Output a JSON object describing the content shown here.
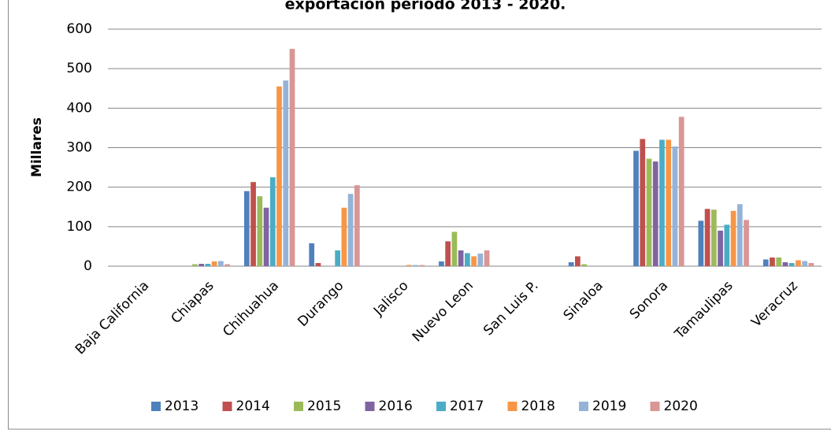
{
  "chart_data": {
    "type": "bar",
    "title": "exportación periodo 2013 - 2020.",
    "y_label": "Millares",
    "categories": [
      "Baja California",
      "Chiapas",
      "Chihuahua",
      "Durango",
      "Jalisco",
      "Nuevo Leon",
      "San Luis P.",
      "Sinaloa",
      "Sonora",
      "Tamaulipas",
      "Veracruz"
    ],
    "series": [
      {
        "name": "2013",
        "color": "#4f81bd",
        "values": [
          0,
          0,
          190,
          58,
          0,
          12,
          0,
          10,
          292,
          115,
          17
        ]
      },
      {
        "name": "2014",
        "color": "#c0504d",
        "values": [
          0,
          0,
          213,
          8,
          0,
          63,
          0,
          25,
          322,
          145,
          22
        ]
      },
      {
        "name": "2015",
        "color": "#9bbb59",
        "values": [
          0,
          5,
          177,
          0,
          0,
          87,
          0,
          5,
          272,
          143,
          22
        ]
      },
      {
        "name": "2016",
        "color": "#8064a2",
        "values": [
          0,
          6,
          148,
          0,
          0,
          40,
          0,
          0,
          265,
          90,
          10
        ]
      },
      {
        "name": "2017",
        "color": "#4bacc6",
        "values": [
          0,
          6,
          225,
          40,
          0,
          33,
          0,
          0,
          320,
          105,
          8
        ]
      },
      {
        "name": "2018",
        "color": "#f79646",
        "values": [
          0,
          12,
          455,
          148,
          3,
          25,
          0,
          0,
          320,
          140,
          15
        ]
      },
      {
        "name": "2019",
        "color": "#95b3d7",
        "values": [
          0,
          13,
          470,
          183,
          3,
          32,
          0,
          0,
          303,
          157,
          13
        ]
      },
      {
        "name": "2020",
        "color": "#d99694",
        "values": [
          0,
          5,
          550,
          205,
          3,
          40,
          0,
          0,
          378,
          117,
          8
        ]
      }
    ],
    "ylim": [
      0,
      600
    ],
    "yticks": [
      0,
      100,
      200,
      300,
      400,
      500,
      600
    ],
    "grid": true,
    "legend": "bottom"
  }
}
